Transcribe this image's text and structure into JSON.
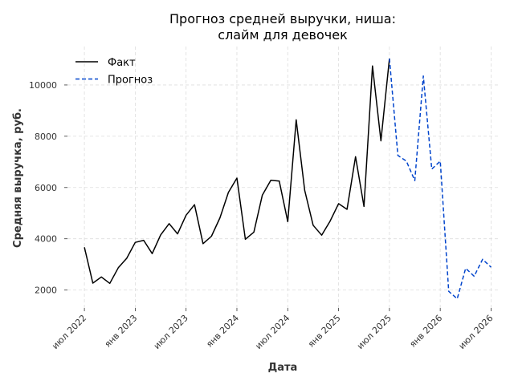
{
  "chart_data": {
    "type": "line",
    "title": [
      "Прогноз средней выручки, ниша:",
      "слайм для девочек"
    ],
    "xlabel": "Дата",
    "ylabel": "Средняя выручка, руб.",
    "xlim": [
      "2022-05",
      "2026-08"
    ],
    "ylim": [
      1300,
      11500
    ],
    "yticks": [
      2000,
      4000,
      6000,
      8000,
      10000
    ],
    "xticks": [
      {
        "date": "2022-07",
        "label": "июл 2022"
      },
      {
        "date": "2023-01",
        "label": "янв 2023"
      },
      {
        "date": "2023-07",
        "label": "июл 2023"
      },
      {
        "date": "2024-01",
        "label": "янв 2024"
      },
      {
        "date": "2024-07",
        "label": "июл 2024"
      },
      {
        "date": "2025-01",
        "label": "янв 2025"
      },
      {
        "date": "2025-07",
        "label": "июл 2025"
      },
      {
        "date": "2026-01",
        "label": "янв 2026"
      },
      {
        "date": "2026-07",
        "label": "июл 2026"
      }
    ],
    "grid": true,
    "legend_position": "top-left",
    "series": [
      {
        "name": "Факт",
        "color": "#000000",
        "style": "solid",
        "points": [
          [
            "2022-07",
            3670
          ],
          [
            "2022-08",
            2270
          ],
          [
            "2022-09",
            2510
          ],
          [
            "2022-10",
            2260
          ],
          [
            "2022-11",
            2870
          ],
          [
            "2022-12",
            3240
          ],
          [
            "2023-01",
            3860
          ],
          [
            "2023-02",
            3940
          ],
          [
            "2023-03",
            3420
          ],
          [
            "2023-04",
            4150
          ],
          [
            "2023-05",
            4590
          ],
          [
            "2023-06",
            4190
          ],
          [
            "2023-07",
            4920
          ],
          [
            "2023-08",
            5330
          ],
          [
            "2023-09",
            3810
          ],
          [
            "2023-10",
            4100
          ],
          [
            "2023-11",
            4820
          ],
          [
            "2023-12",
            5810
          ],
          [
            "2024-01",
            6370
          ],
          [
            "2024-02",
            3980
          ],
          [
            "2024-03",
            4260
          ],
          [
            "2024-04",
            5700
          ],
          [
            "2024-05",
            6280
          ],
          [
            "2024-06",
            6250
          ],
          [
            "2024-07",
            4670
          ],
          [
            "2024-08",
            8640
          ],
          [
            "2024-09",
            5890
          ],
          [
            "2024-10",
            4530
          ],
          [
            "2024-11",
            4140
          ],
          [
            "2024-12",
            4690
          ],
          [
            "2025-01",
            5370
          ],
          [
            "2025-02",
            5150
          ],
          [
            "2025-03",
            7200
          ],
          [
            "2025-04",
            5260
          ],
          [
            "2025-05",
            10740
          ],
          [
            "2025-06",
            7820
          ],
          [
            "2025-07",
            11030
          ]
        ]
      },
      {
        "name": "Прогноз",
        "color": "#0044cc",
        "style": "dashed",
        "points": [
          [
            "2025-07",
            11030
          ],
          [
            "2025-08",
            7250
          ],
          [
            "2025-09",
            7030
          ],
          [
            "2025-10",
            6270
          ],
          [
            "2025-11",
            10350
          ],
          [
            "2025-12",
            6720
          ],
          [
            "2026-01",
            7030
          ],
          [
            "2026-02",
            1950
          ],
          [
            "2026-03",
            1660
          ],
          [
            "2026-04",
            2850
          ],
          [
            "2026-05",
            2540
          ],
          [
            "2026-06",
            3200
          ],
          [
            "2026-07",
            2890
          ]
        ]
      }
    ]
  }
}
